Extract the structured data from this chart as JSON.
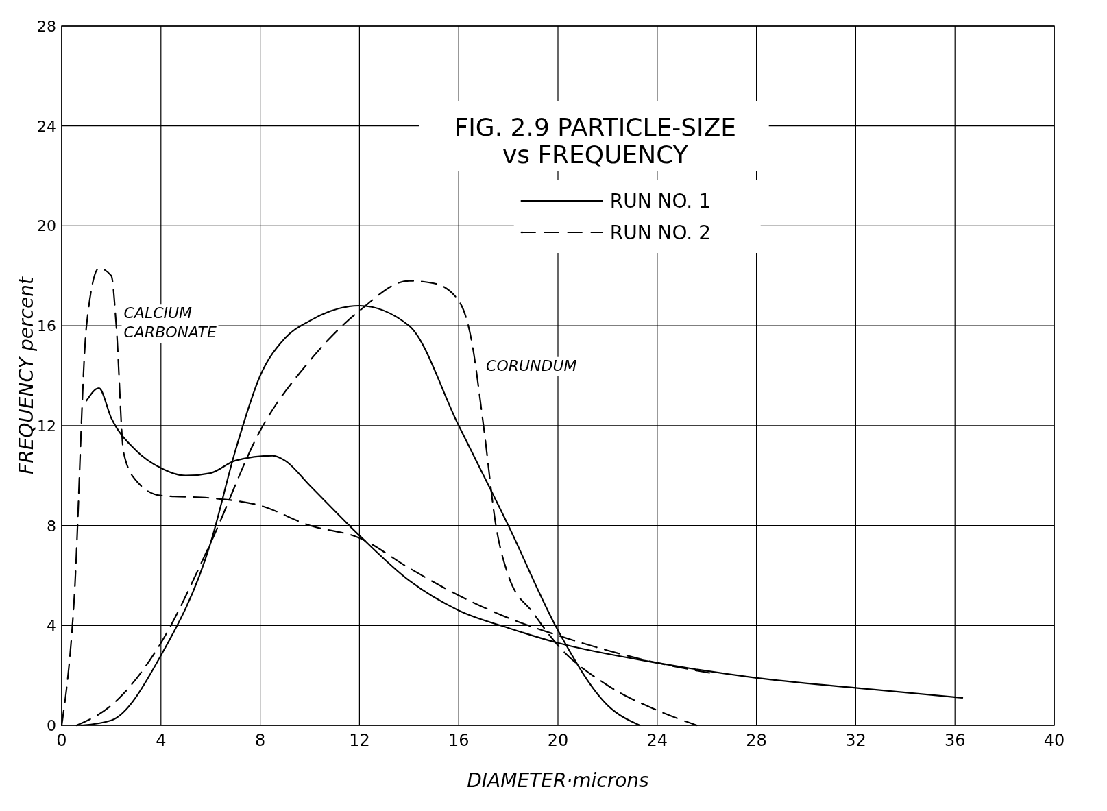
{
  "chart_data": {
    "type": "line",
    "title": "FIG. 2.9 PARTICLE-SIZE vs FREQUENCY",
    "xlabel": "DIAMETER·microns",
    "ylabel": "FREQUENCY percent",
    "xlim": [
      0,
      40
    ],
    "xticks": [
      0,
      4,
      8,
      12,
      16,
      20,
      24,
      28,
      32,
      36,
      40
    ],
    "ylim": [
      0,
      28
    ],
    "yticks": [
      0,
      4,
      8,
      12,
      16,
      20,
      24,
      28
    ],
    "grid": true,
    "legend": "top right",
    "series": [
      {
        "name": "RUN NO. 1",
        "color": "#000000",
        "line_style": "solid",
        "x": [
          0.8,
          2,
          4,
          6,
          7,
          8,
          9,
          10,
          12,
          14,
          16,
          18,
          20,
          22,
          23.3
        ],
        "values": [
          0,
          0.2,
          2.8,
          7.3,
          11,
          14,
          15.5,
          16.2,
          16.8,
          16,
          12,
          8,
          3.8,
          0.8,
          0
        ]
      },
      {
        "name": "RUN NO. 2",
        "color": "#000000",
        "line_style": "dashed",
        "x": [
          0.6,
          2,
          4,
          6,
          8,
          10,
          12,
          14,
          15,
          16,
          16.5,
          17,
          17.5,
          18,
          19,
          20,
          22,
          24,
          25.6
        ],
        "values": [
          0,
          0.8,
          3.3,
          7.3,
          11.8,
          14.6,
          16.6,
          17.8,
          17.7,
          17,
          15.5,
          12,
          8,
          6,
          4.5,
          3.2,
          1.6,
          0.6,
          0
        ]
      },
      {
        "color": "#000000",
        "line_style": "solid",
        "x": [
          1,
          1.5,
          2,
          3,
          4,
          5,
          6,
          7,
          8.5,
          9,
          10,
          12,
          14,
          16,
          18,
          20,
          24,
          28,
          32,
          36.3
        ],
        "values": [
          13,
          13.5,
          12.3,
          11,
          10.3,
          10,
          10.1,
          10.6,
          10.8,
          10.6,
          9.6,
          7.6,
          5.8,
          4.6,
          3.9,
          3.3,
          2.5,
          1.9,
          1.5,
          1.1
        ]
      },
      {
        "color": "#000000",
        "line_style": "dashed",
        "x": [
          0,
          0.5,
          1,
          1.5,
          2,
          2.2,
          2.5,
          3,
          4,
          6,
          8,
          10,
          12,
          14,
          16,
          18,
          20,
          22,
          24,
          26.1
        ],
        "values": [
          0,
          5,
          16,
          18.3,
          18,
          16,
          10.9,
          9.8,
          9.2,
          9.1,
          8.8,
          8,
          7.5,
          6.3,
          5.2,
          4.3,
          3.6,
          3,
          2.5,
          2.1
        ]
      }
    ],
    "annotations": [
      "CALCIUM CARBONATE",
      "CORUNDUM"
    ]
  }
}
